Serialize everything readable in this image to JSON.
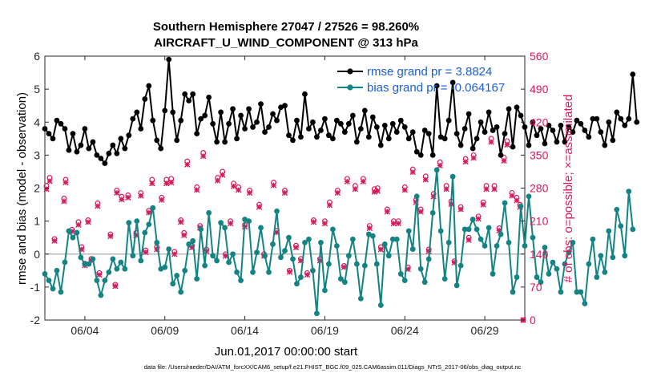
{
  "chart_data": {
    "type": "line",
    "title": "Southern Hemisphere 27047 / 27526 = 98.260%",
    "subtitle": "AIRCRAFT_U_WIND_COMPONENT @ 313 hPa",
    "xlabel": "Jun.01,2017 00:00:00 start",
    "ylabel_left": "rmse and bias (model - observation)",
    "ylabel_right": "# of obs: o=possible; ×=assimilated",
    "x_tick_labels": [
      "06/04",
      "06/09",
      "06/14",
      "06/19",
      "06/24",
      "06/29"
    ],
    "x_tick_values": [
      4,
      9,
      14,
      19,
      24,
      29
    ],
    "xlim": [
      1.5,
      31.5
    ],
    "ylim_left": [
      -2,
      6
    ],
    "y_left_ticks": [
      "-2",
      "-1",
      "0",
      "1",
      "2",
      "3",
      "4",
      "5",
      "6"
    ],
    "ylim_right": [
      0,
      560
    ],
    "y_right_ticks": [
      "0",
      "70",
      "140",
      "210",
      "280",
      "350",
      "420",
      "490",
      "560"
    ],
    "legend_location": "top-right",
    "colors": {
      "rmse": "#000000",
      "bias": "#138383",
      "obs": "#d81b5d",
      "legend_text": "#1a5fd6",
      "zero_line": "#b8b8b8"
    },
    "series": [
      {
        "name": "rmse grand pr = 3.8824",
        "axis": "left",
        "x_start": 1.5,
        "x_step": 0.25,
        "values": [
          3.8,
          3.65,
          3.5,
          4.05,
          3.95,
          3.8,
          3.15,
          3.65,
          3.1,
          3.3,
          3.8,
          3.2,
          3.4,
          3.0,
          2.9,
          2.75,
          3.05,
          3.3,
          3.05,
          3.5,
          3.2,
          3.6,
          4.1,
          4.3,
          3.8,
          4.7,
          5.1,
          4.05,
          3.45,
          3.2,
          4.35,
          5.9,
          4.3,
          3.45,
          4.05,
          4.85,
          4.65,
          4.85,
          3.65,
          4.1,
          4.2,
          4.75,
          3.95,
          3.4,
          4.3,
          3.4,
          3.95,
          4.4,
          3.5,
          4.2,
          3.8,
          4.4,
          3.85,
          4.0,
          4.55,
          3.7,
          3.85,
          4.25,
          4.05,
          4.45,
          4.5,
          3.6,
          3.45,
          4.05,
          3.55,
          4.85,
          3.8,
          4.0,
          3.55,
          3.75,
          4.1,
          3.6,
          3.5,
          4.05,
          3.95,
          3.7,
          3.95,
          4.2,
          3.4,
          3.8,
          4.35,
          3.55,
          4.15,
          3.85,
          3.3,
          3.9,
          3.5,
          3.95,
          3.7,
          4.05,
          3.85,
          3.5,
          3.7,
          3.1,
          3.0,
          3.75,
          3.65,
          3.0,
          5.1,
          3.55,
          3.5,
          4.05,
          5.2,
          3.65,
          3.3,
          3.8,
          4.25,
          3.2,
          3.5,
          4.0,
          3.7,
          4.3,
          3.75,
          3.85,
          3.0,
          3.65,
          4.4,
          3.25,
          4.45,
          4.2,
          3.85,
          3.3,
          4.0,
          3.6,
          3.8,
          3.35,
          3.9,
          3.75,
          3.4,
          3.9,
          3.4,
          3.85,
          3.7,
          4.05,
          3.95,
          3.75,
          3.55,
          4.1,
          4.1,
          3.7,
          3.3,
          4.0,
          3.45,
          4.3,
          4.1,
          3.9,
          4.1,
          5.45,
          4.0
        ]
      },
      {
        "name": "bias grand pr = -0.064167",
        "axis": "left",
        "x_start": 1.5,
        "x_step": 0.25,
        "values": [
          -0.6,
          -0.8,
          -1.05,
          -0.5,
          -1.15,
          -0.25,
          0.7,
          0.5,
          0.65,
          -0.1,
          -0.3,
          -0.3,
          -0.15,
          -0.8,
          -1.25,
          -0.8,
          -0.55,
          -0.15,
          -0.45,
          -0.25,
          -0.45,
          0.95,
          -0.05,
          1.0,
          -0.2,
          0.65,
          0.9,
          1.4,
          0.35,
          -0.45,
          -0.4,
          0.15,
          -0.9,
          -0.65,
          -1.15,
          -0.5,
          0.3,
          0.4,
          -0.75,
          0.75,
          -0.35,
          1.25,
          -0.05,
          -0.2,
          0.95,
          0.8,
          -0.25,
          0.0,
          -0.55,
          -0.8,
          1.05,
          1.0,
          -0.55,
          0.05,
          0.8,
          -0.05,
          -0.55,
          0.3,
          1.3,
          -0.1,
          0.1,
          0.5,
          -0.15,
          -0.9,
          -0.7,
          0.35,
          0.45,
          -0.5,
          -1.8,
          0.35,
          -1.1,
          -0.3,
          0.75,
          0.25,
          -0.75,
          -0.85,
          -0.05,
          0.45,
          -0.3,
          -1.35,
          -0.35,
          0.6,
          0.55,
          -0.3,
          -1.55,
          0.3,
          -0.05,
          0.45,
          0.45,
          -0.6,
          -0.8,
          0.7,
          0.15,
          1.75,
          -0.45,
          -0.85,
          -0.15,
          1.25,
          2.55,
          0.7,
          -0.75,
          0.35,
          2.35,
          -0.95,
          -0.35,
          0.75,
          0.75,
          1.05,
          0.75,
          0.45,
          0.25,
          0.8,
          -0.6,
          0.25,
          0.6,
          1.55,
          0.35,
          -1.15,
          -0.7,
          1.45,
          0.25,
          1.75,
          0.5,
          -0.7,
          -0.85,
          0.2,
          -0.6,
          -0.25,
          -0.45,
          -1.15,
          -0.3,
          0.05,
          0.35,
          -1.15,
          -1.15,
          -1.5,
          -0.3,
          0.45,
          -0.7,
          -0.05,
          -0.55,
          0.7,
          -0.1,
          1.35,
          0.85,
          -0.05,
          1.9,
          0.75
        ]
      },
      {
        "name": "obs possible (o)",
        "axis": "right",
        "points": [
          [
            1.6,
            285
          ],
          [
            1.8,
            302
          ],
          [
            2.1,
            172
          ],
          [
            2.7,
            258
          ],
          [
            2.8,
            298
          ],
          [
            3.2,
            192
          ],
          [
            3.6,
            208
          ],
          [
            3.8,
            155
          ],
          [
            4.0,
            120
          ],
          [
            4.2,
            212
          ],
          [
            4.4,
            130
          ],
          [
            4.8,
            248
          ],
          [
            4.9,
            100
          ],
          [
            5.6,
            182
          ],
          [
            5.9,
            75
          ],
          [
            6.0,
            275
          ],
          [
            6.3,
            262
          ],
          [
            6.7,
            265
          ],
          [
            7.2,
            185
          ],
          [
            7.5,
            270
          ],
          [
            7.8,
            148
          ],
          [
            8.0,
            232
          ],
          [
            8.2,
            298
          ],
          [
            8.5,
            155
          ],
          [
            8.8,
            260
          ],
          [
            9.1,
            298
          ],
          [
            9.4,
            300
          ],
          [
            9.6,
            145
          ],
          [
            10.0,
            212
          ],
          [
            10.2,
            185
          ],
          [
            10.4,
            337
          ],
          [
            10.7,
            158
          ],
          [
            11.0,
            282
          ],
          [
            11.2,
            200
          ],
          [
            11.4,
            355
          ],
          [
            11.6,
            150
          ],
          [
            12.3,
            302
          ],
          [
            12.6,
            315
          ],
          [
            12.8,
            140
          ],
          [
            13.1,
            210
          ],
          [
            13.3,
            290
          ],
          [
            13.6,
            282
          ],
          [
            14.0,
            202
          ],
          [
            14.3,
            275
          ],
          [
            14.9,
            245
          ],
          [
            15.2,
            140
          ],
          [
            15.8,
            292
          ],
          [
            16.0,
            190
          ],
          [
            16.5,
            275
          ],
          [
            16.8,
            105
          ],
          [
            17.2,
            158
          ],
          [
            17.5,
            130
          ],
          [
            17.9,
            100
          ],
          [
            18.3,
            212
          ],
          [
            18.7,
            130
          ],
          [
            19.0,
            210
          ],
          [
            19.3,
            250
          ],
          [
            19.8,
            275
          ],
          [
            20.2,
            115
          ],
          [
            20.4,
            300
          ],
          [
            20.9,
            285
          ],
          [
            21.4,
            300
          ],
          [
            21.8,
            200
          ],
          [
            22.1,
            278
          ],
          [
            22.3,
            280
          ],
          [
            22.5,
            155
          ],
          [
            22.9,
            235
          ],
          [
            23.3,
            210
          ],
          [
            23.6,
            210
          ],
          [
            24.0,
            282
          ],
          [
            24.2,
            112
          ],
          [
            24.5,
            320
          ],
          [
            24.7,
            255
          ],
          [
            25.0,
            235
          ],
          [
            25.3,
            305
          ],
          [
            25.5,
            150
          ],
          [
            25.8,
            268
          ],
          [
            26.2,
            335
          ],
          [
            26.6,
            285
          ],
          [
            26.9,
            252
          ],
          [
            27.1,
            125
          ],
          [
            27.5,
            240
          ],
          [
            27.8,
            342
          ],
          [
            28.0,
            175
          ],
          [
            28.3,
            350
          ],
          [
            28.6,
            220
          ],
          [
            28.9,
            250
          ],
          [
            29.1,
            285
          ],
          [
            29.4,
            385
          ],
          [
            29.6,
            285
          ],
          [
            29.9,
            195
          ],
          [
            30.2,
            345
          ],
          [
            30.4,
            380
          ],
          [
            30.7,
            270
          ],
          [
            31.0,
            260
          ],
          [
            31.2,
            245
          ],
          [
            31.4,
            0
          ]
        ]
      },
      {
        "name": "obs assimilated (×)",
        "axis": "right",
        "points": [
          [
            1.6,
            278
          ],
          [
            1.8,
            295
          ],
          [
            2.1,
            168
          ],
          [
            2.7,
            252
          ],
          [
            2.8,
            292
          ],
          [
            3.2,
            188
          ],
          [
            3.6,
            202
          ],
          [
            3.8,
            150
          ],
          [
            4.0,
            116
          ],
          [
            4.2,
            208
          ],
          [
            4.4,
            126
          ],
          [
            4.8,
            242
          ],
          [
            4.9,
            96
          ],
          [
            5.6,
            178
          ],
          [
            5.9,
            72
          ],
          [
            6.0,
            270
          ],
          [
            6.3,
            256
          ],
          [
            6.7,
            260
          ],
          [
            7.2,
            180
          ],
          [
            7.5,
            264
          ],
          [
            7.8,
            144
          ],
          [
            8.0,
            228
          ],
          [
            8.2,
            290
          ],
          [
            8.5,
            150
          ],
          [
            8.8,
            255
          ],
          [
            9.1,
            290
          ],
          [
            9.4,
            292
          ],
          [
            9.6,
            140
          ],
          [
            10.0,
            208
          ],
          [
            10.2,
            180
          ],
          [
            10.4,
            330
          ],
          [
            10.7,
            154
          ],
          [
            11.0,
            276
          ],
          [
            11.2,
            196
          ],
          [
            11.4,
            348
          ],
          [
            11.6,
            146
          ],
          [
            12.3,
            296
          ],
          [
            12.6,
            308
          ],
          [
            12.8,
            136
          ],
          [
            13.1,
            205
          ],
          [
            13.3,
            284
          ],
          [
            13.6,
            276
          ],
          [
            14.0,
            198
          ],
          [
            14.3,
            270
          ],
          [
            14.9,
            240
          ],
          [
            15.2,
            136
          ],
          [
            15.8,
            286
          ],
          [
            16.0,
            186
          ],
          [
            16.5,
            270
          ],
          [
            16.8,
            102
          ],
          [
            17.2,
            154
          ],
          [
            17.5,
            126
          ],
          [
            17.9,
            96
          ],
          [
            18.3,
            208
          ],
          [
            18.7,
            126
          ],
          [
            19.0,
            205
          ],
          [
            19.3,
            244
          ],
          [
            19.8,
            270
          ],
          [
            20.2,
            112
          ],
          [
            20.4,
            294
          ],
          [
            20.9,
            278
          ],
          [
            21.4,
            294
          ],
          [
            21.8,
            195
          ],
          [
            22.1,
            272
          ],
          [
            22.3,
            274
          ],
          [
            22.5,
            150
          ],
          [
            22.9,
            230
          ],
          [
            23.3,
            205
          ],
          [
            23.6,
            205
          ],
          [
            24.0,
            276
          ],
          [
            24.2,
            108
          ],
          [
            24.5,
            314
          ],
          [
            24.7,
            250
          ],
          [
            25.0,
            230
          ],
          [
            25.3,
            298
          ],
          [
            25.5,
            146
          ],
          [
            25.8,
            262
          ],
          [
            26.2,
            328
          ],
          [
            26.6,
            278
          ],
          [
            26.9,
            246
          ],
          [
            27.1,
            122
          ],
          [
            27.5,
            235
          ],
          [
            27.8,
            336
          ],
          [
            28.0,
            170
          ],
          [
            28.3,
            344
          ],
          [
            28.6,
            215
          ],
          [
            28.9,
            245
          ],
          [
            29.1,
            278
          ],
          [
            29.4,
            378
          ],
          [
            29.6,
            278
          ],
          [
            29.9,
            190
          ],
          [
            30.2,
            338
          ],
          [
            30.4,
            372
          ],
          [
            30.7,
            264
          ],
          [
            31.0,
            254
          ],
          [
            31.2,
            240
          ],
          [
            31.4,
            0
          ]
        ]
      }
    ],
    "footnote": "data file: /Users/raeder/DAI/ATM_forcXX/CAM6_setup/f.e21.FHIST_BGC.f09_025.CAM6assim.011/Diags_NTrS_2017-06/obs_diag_output.nc"
  }
}
